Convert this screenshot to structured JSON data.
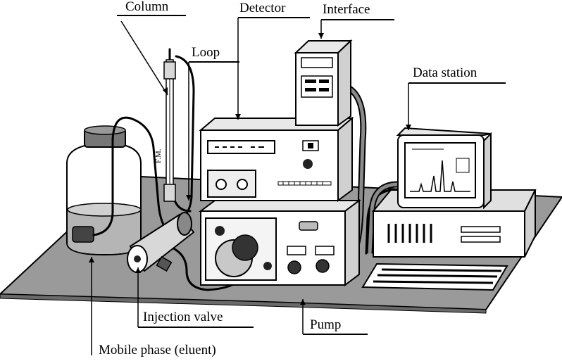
{
  "labels": {
    "column": "Column",
    "detector": "Detector",
    "interface": "Interface",
    "loop": "Loop",
    "data_station": "Data station",
    "injection_valve": "Injection valve",
    "pump": "Pump",
    "mobile_phase": "Mobile phase (eluent)"
  },
  "column_marking": "F.M."
}
